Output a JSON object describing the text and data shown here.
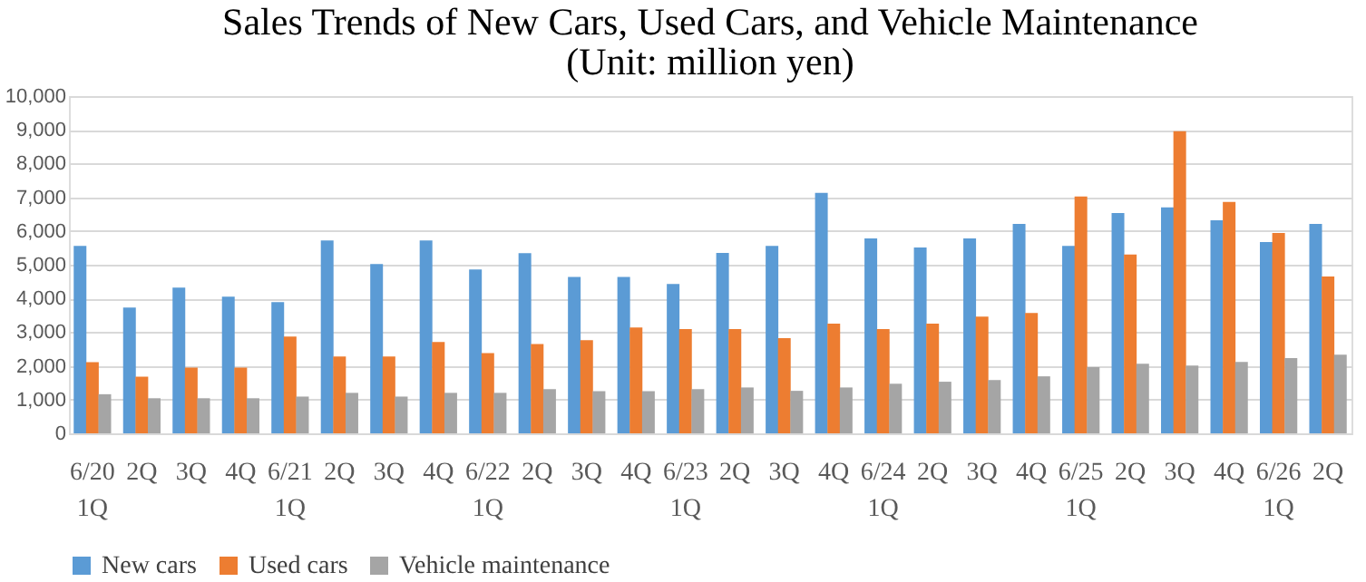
{
  "chart_data": {
    "type": "bar",
    "title": "Sales Trends of New Cars, Used Cars, and Vehicle Maintenance",
    "subtitle": "(Unit: million yen)",
    "categories": [
      "6/20 1Q",
      "2Q",
      "3Q",
      "4Q",
      "6/21 1Q",
      "2Q",
      "3Q",
      "4Q",
      "6/22 1Q",
      "2Q",
      "3Q",
      "4Q",
      "6/23 1Q",
      "2Q",
      "3Q",
      "4Q",
      "6/24 1Q",
      "2Q",
      "3Q",
      "4Q",
      "6/25 1Q",
      "2Q",
      "3Q",
      "4Q",
      "6/26 1Q",
      "2Q"
    ],
    "series": [
      {
        "name": "New cars",
        "color": "#5b9bd5",
        "values": [
          5560,
          3730,
          4320,
          4050,
          3890,
          5720,
          5020,
          5720,
          4860,
          5340,
          4640,
          4640,
          4430,
          5350,
          5560,
          7130,
          5780,
          5510,
          5780,
          6210,
          5560,
          6530,
          6700,
          6320,
          5670,
          6210
        ]
      },
      {
        "name": "Used cars",
        "color": "#ed7d31",
        "values": [
          2110,
          1680,
          1950,
          1950,
          2870,
          2280,
          2280,
          2710,
          2380,
          2650,
          2760,
          3140,
          3090,
          3090,
          2820,
          3250,
          3090,
          3250,
          3460,
          3570,
          7020,
          5300,
          8960,
          6860,
          5940,
          4650
        ]
      },
      {
        "name": "Vehicle maintenance",
        "color": "#a5a5a5",
        "values": [
          1160,
          1040,
          1040,
          1040,
          1090,
          1200,
          1090,
          1200,
          1200,
          1310,
          1250,
          1250,
          1310,
          1360,
          1260,
          1360,
          1470,
          1530,
          1580,
          1690,
          1960,
          2060,
          2010,
          2120,
          2230,
          2330
        ]
      }
    ],
    "ylim": [
      0,
      10000
    ],
    "yticks": [
      0,
      {
        "value": 1000,
        "label": "1,000"
      },
      {
        "value": 2000,
        "label": "2,000"
      },
      {
        "value": 3000,
        "label": "3,000"
      },
      {
        "value": 4000,
        "label": "4,000"
      },
      {
        "value": 5000,
        "label": "5,000"
      },
      {
        "value": 6000,
        "label": "6,000"
      },
      {
        "value": 7000,
        "label": "7,000"
      },
      {
        "value": 8000,
        "label": "8,000"
      },
      {
        "value": 9000,
        "label": "9,000"
      },
      {
        "value": 10000,
        "label": "10,000"
      }
    ],
    "grid": "y",
    "legend": "bottom"
  }
}
